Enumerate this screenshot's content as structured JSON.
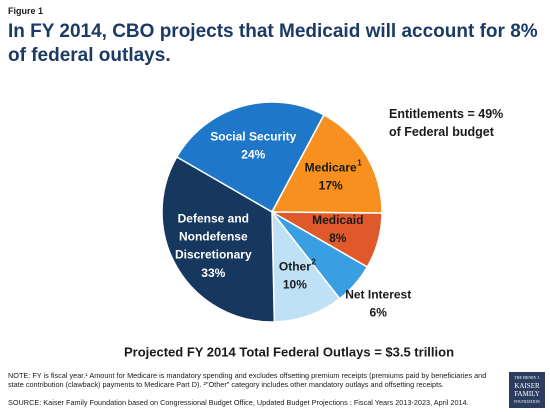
{
  "figure_label": "Figure 1",
  "title": "In FY 2014, CBO projects that Medicaid will account for 8% of federal outlays.",
  "chart_data": {
    "type": "pie",
    "categories": [
      "Social Security",
      "Medicare",
      "Medicaid",
      "Net Interest",
      "Other",
      "Defense and Nondefense Discretionary"
    ],
    "label_superscripts": [
      null,
      "1",
      null,
      null,
      "2",
      null
    ],
    "values": [
      24,
      17,
      8,
      6,
      10,
      33
    ],
    "value_labels": [
      "24%",
      "17%",
      "8%",
      "6%",
      "10%",
      "33%"
    ],
    "colors": [
      "#1f77c9",
      "#f7901e",
      "#e0592a",
      "#3a9fe2",
      "#bfe1f6",
      "#16375e"
    ],
    "annotation": "Entitlements = 49% of Federal budget",
    "subtitle": "Projected FY 2014 Total Federal Outlays = $3.5 trillion"
  },
  "note": "NOTE: FY is fiscal year.¹ Amount for Medicare is mandatory spending and excludes offsetting premium receipts (premiums paid by beneficiaries and state contribution (clawback) payments to Medicare Part D). ²\"Other\" category includes other mandatory outlays and offsetting receipts.",
  "source": "SOURCE:  Kaiser Family Foundation based on Congressional Budget Office, Updated Budget Projections : Fiscal Years 2013-2023, April 2014.",
  "logo": [
    "THE HENRY J.",
    "KAISER",
    "FAMILY",
    "FOUNDATION"
  ]
}
